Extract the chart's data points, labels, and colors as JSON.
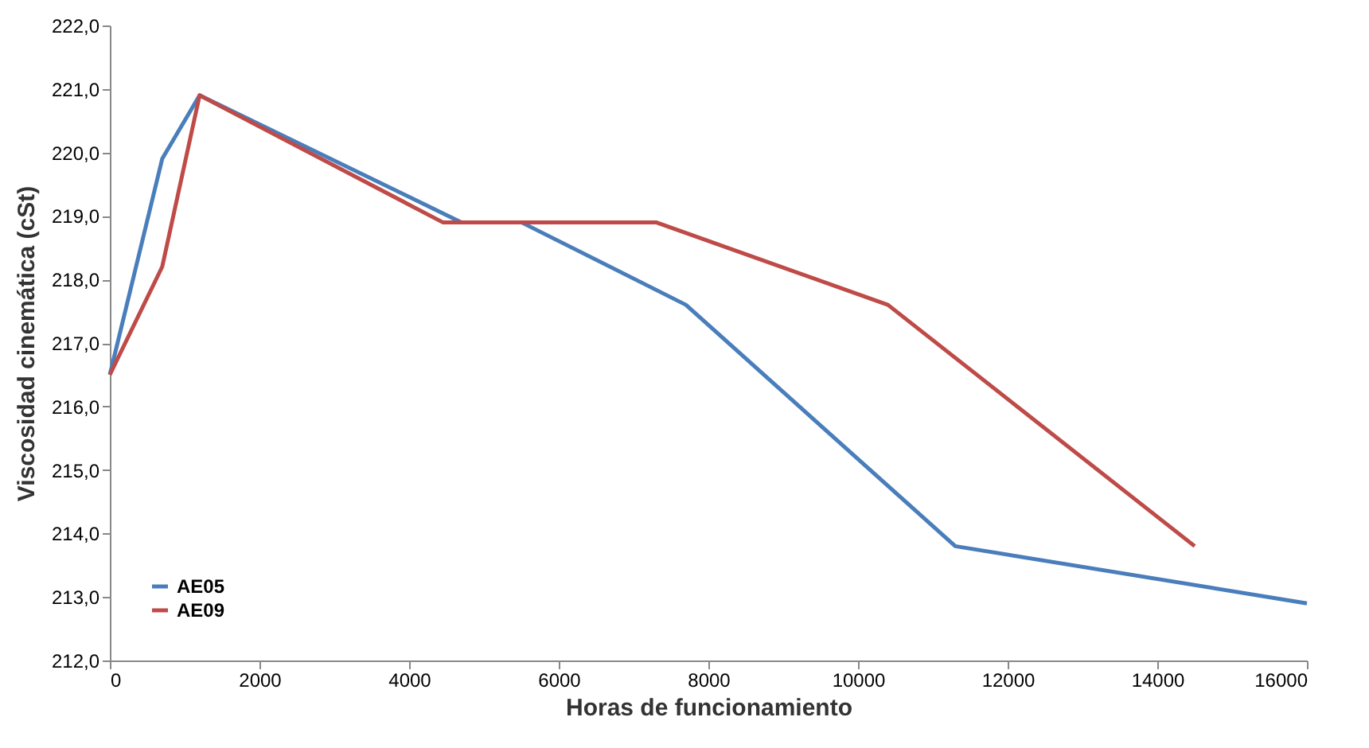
{
  "chart_data": {
    "type": "line",
    "xlabel": "Horas de funcionamiento",
    "ylabel": "Viscosidad cinemática (cSt)",
    "series": [
      {
        "name": "AE05",
        "color": "#4a7ebb",
        "x": [
          0,
          700,
          1200,
          4700,
          5500,
          7700,
          11300,
          16000
        ],
        "values": [
          216.5,
          219.9,
          220.9,
          218.9,
          218.9,
          217.6,
          213.8,
          212.9
        ]
      },
      {
        "name": "AE09",
        "color": "#be4b48",
        "x": [
          0,
          700,
          1200,
          4450,
          7300,
          10400,
          14500
        ],
        "values": [
          216.5,
          218.2,
          220.9,
          218.9,
          218.9,
          217.6,
          213.8
        ]
      }
    ],
    "xlim": [
      0,
      16000
    ],
    "xticks": [
      0,
      2000,
      4000,
      6000,
      8000,
      10000,
      12000,
      14000,
      16000
    ],
    "ylim": [
      212,
      222
    ],
    "yticks": [
      {
        "value": 212,
        "label": "212,0"
      },
      {
        "value": 213,
        "label": "213,0"
      },
      {
        "value": 214,
        "label": "214,0"
      },
      {
        "value": 215,
        "label": "215,0"
      },
      {
        "value": 216,
        "label": "216,0"
      },
      {
        "value": 217,
        "label": "217,0"
      },
      {
        "value": 218,
        "label": "218,0"
      },
      {
        "value": 219,
        "label": "219,0"
      },
      {
        "value": 220,
        "label": "220,0"
      },
      {
        "value": 221,
        "label": "221,0"
      },
      {
        "value": 222,
        "label": "222,0"
      }
    ],
    "grid": false,
    "legend": "bottom left",
    "marker": "none",
    "line_style": "solid"
  }
}
